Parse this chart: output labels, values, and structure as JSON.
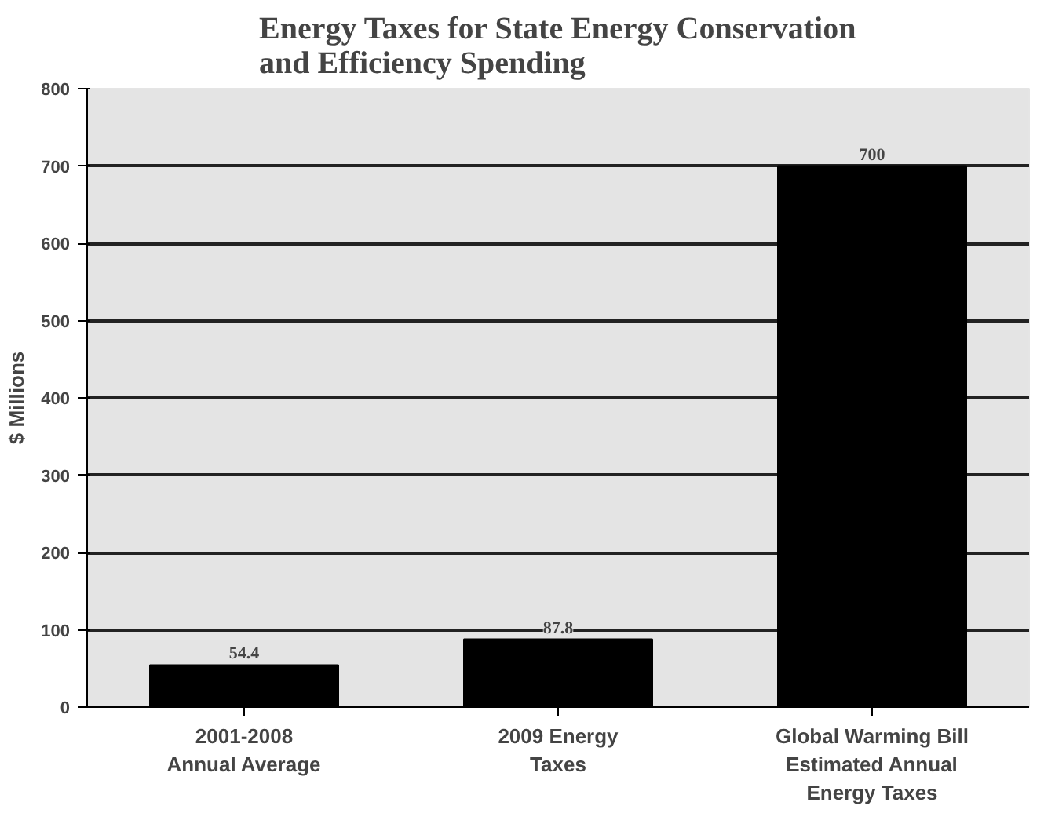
{
  "chart_data": {
    "type": "bar",
    "title": "Energy Taxes for State Energy Conservation\nand Efficiency Spending",
    "ylabel": "$ Millions",
    "categories": [
      "2001-2008\nAnnual Average",
      "2009 Energy\nTaxes",
      "Global Warming Bill\nEstimated Annual\nEnergy Taxes"
    ],
    "values": [
      54.4,
      87.8,
      700
    ],
    "color": "#000000",
    "data_labels": true,
    "ylim": [
      0,
      800
    ],
    "yticks": [
      0,
      100,
      200,
      300,
      400,
      500,
      600,
      700,
      800
    ],
    "grid": "y"
  }
}
